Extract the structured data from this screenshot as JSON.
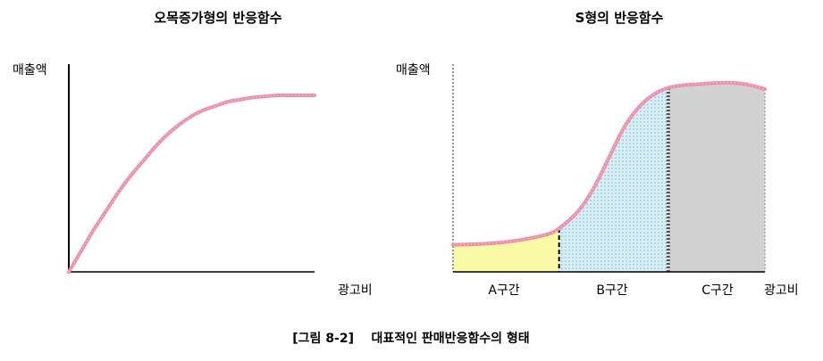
{
  "caption": "[그림 8-2]    대표적인 판매반응함수의 형태",
  "chart_data": [
    {
      "type": "line",
      "title": "오목증가형의 반응함수",
      "xlabel": "광고비",
      "ylabel": "매출액",
      "xlim": [
        0,
        1
      ],
      "ylim": [
        0,
        1
      ],
      "grid": false,
      "color": "#f08fa8",
      "series": [
        {
          "points": [
            [
              0.0,
              0.0
            ],
            [
              0.05,
              0.1
            ],
            [
              0.1,
              0.2
            ],
            [
              0.15,
              0.29
            ],
            [
              0.2,
              0.38
            ],
            [
              0.25,
              0.46
            ],
            [
              0.3,
              0.53
            ],
            [
              0.35,
              0.6
            ],
            [
              0.4,
              0.66
            ],
            [
              0.45,
              0.71
            ],
            [
              0.5,
              0.75
            ],
            [
              0.55,
              0.78
            ],
            [
              0.6,
              0.8
            ],
            [
              0.65,
              0.82
            ],
            [
              0.7,
              0.83
            ],
            [
              0.75,
              0.84
            ],
            [
              0.8,
              0.845
            ],
            [
              0.85,
              0.85
            ],
            [
              0.9,
              0.85
            ],
            [
              0.95,
              0.85
            ],
            [
              1.0,
              0.85
            ]
          ]
        }
      ]
    },
    {
      "type": "area",
      "title": "S형의 반응함수",
      "xlabel": "광고비",
      "ylabel": "매출액",
      "xlim": [
        0,
        1
      ],
      "ylim": [
        0,
        1
      ],
      "grid": false,
      "color": "#f08fa8",
      "series": [
        {
          "points": [
            [
              0.0,
              0.13
            ],
            [
              0.1,
              0.135
            ],
            [
              0.2,
              0.15
            ],
            [
              0.3,
              0.18
            ],
            [
              0.34,
              0.21
            ],
            [
              0.4,
              0.29
            ],
            [
              0.45,
              0.4
            ],
            [
              0.5,
              0.55
            ],
            [
              0.55,
              0.7
            ],
            [
              0.6,
              0.8
            ],
            [
              0.65,
              0.86
            ],
            [
              0.7,
              0.89
            ],
            [
              0.75,
              0.9
            ],
            [
              0.8,
              0.905
            ],
            [
              0.85,
              0.91
            ],
            [
              0.9,
              0.91
            ],
            [
              0.95,
              0.9
            ],
            [
              1.0,
              0.88
            ]
          ]
        }
      ],
      "regions": [
        {
          "label": "A구간",
          "x": [
            0.0,
            0.34
          ],
          "color": "#fafaa6"
        },
        {
          "label": "B구간",
          "x": [
            0.34,
            0.69
          ],
          "color": "#d6eef6"
        },
        {
          "label": "C구간",
          "x": [
            0.69,
            1.0
          ],
          "color": "#d2d2d2"
        }
      ]
    }
  ]
}
